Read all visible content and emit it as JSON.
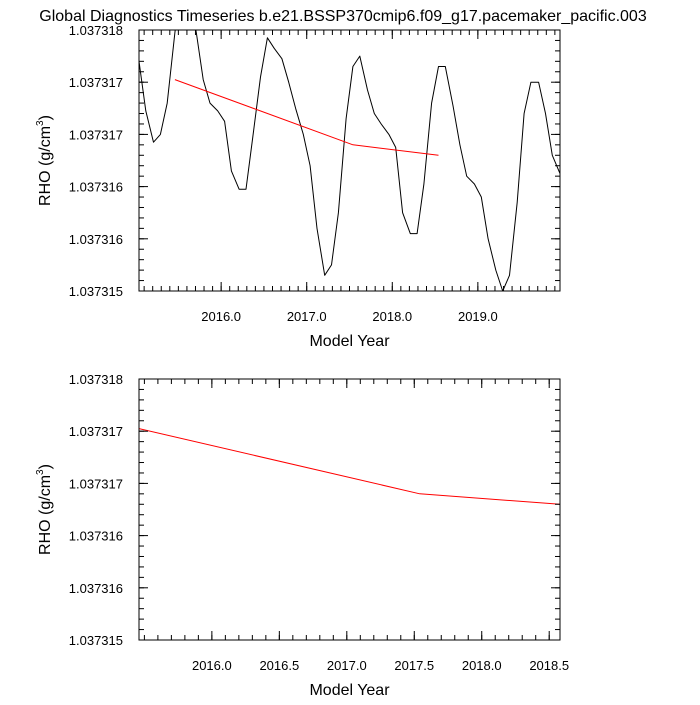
{
  "title": "Global Diagnostics Timeseries b.e21.BSSP370cmip6.f09_g17.pacemaker_pacific.003",
  "colors": {
    "raw_series": "#000000",
    "smooth_series": "#ff0000",
    "frame": "#000000",
    "background": "#ffffff"
  },
  "chart_data": [
    {
      "type": "line",
      "xlabel": "Model Year",
      "ylabel_main": "RHO (g/cm",
      "ylabel_sup": "3",
      "ylabel_close": ")",
      "xlim": [
        2015.04,
        2019.96
      ],
      "ylim": [
        0,
        5
      ],
      "yticks": [
        {
          "v": 0,
          "label": "1.037315"
        },
        {
          "v": 1,
          "label": "1.037316"
        },
        {
          "v": 2,
          "label": "1.037316"
        },
        {
          "v": 3,
          "label": "1.037317"
        },
        {
          "v": 4,
          "label": "1.037317"
        },
        {
          "v": 5,
          "label": "1.037318"
        }
      ],
      "xticks": [
        {
          "v": 2016.0,
          "label": "2016.0"
        },
        {
          "v": 2017.0,
          "label": "2017.0"
        },
        {
          "v": 2018.0,
          "label": "2018.0"
        },
        {
          "v": 2019.0,
          "label": "2019.0"
        }
      ],
      "x_minor_step": 0.1,
      "y_minor_step": 0.2,
      "series": [
        {
          "color": "#000000",
          "x": [
            2015.04,
            2015.12,
            2015.21,
            2015.29,
            2015.37,
            2015.46,
            2015.54,
            2015.62,
            2015.71,
            2015.79,
            2015.87,
            2015.96,
            2016.04,
            2016.12,
            2016.21,
            2016.29,
            2016.37,
            2016.46,
            2016.54,
            2016.62,
            2016.71,
            2016.79,
            2016.87,
            2016.96,
            2017.04,
            2017.12,
            2017.21,
            2017.29,
            2017.37,
            2017.46,
            2017.54,
            2017.62,
            2017.71,
            2017.79,
            2017.87,
            2017.96,
            2018.04,
            2018.12,
            2018.21,
            2018.29,
            2018.37,
            2018.46,
            2018.54,
            2018.62,
            2018.71,
            2018.79,
            2018.87,
            2018.96,
            2019.04,
            2019.12,
            2019.21,
            2019.29,
            2019.37,
            2019.46,
            2019.54,
            2019.62,
            2019.71,
            2019.79,
            2019.87,
            2019.96
          ],
          "y": [
            4.4,
            3.45,
            2.85,
            3.0,
            3.6,
            4.95,
            6.0,
            5.8,
            4.95,
            4.05,
            3.6,
            3.45,
            3.25,
            2.3,
            1.95,
            1.95,
            2.95,
            4.1,
            4.85,
            4.65,
            4.45,
            4.0,
            3.5,
            3.0,
            2.4,
            1.2,
            0.3,
            0.5,
            1.5,
            3.3,
            4.3,
            4.5,
            3.85,
            3.4,
            3.2,
            3.0,
            2.75,
            1.5,
            1.1,
            1.1,
            2.05,
            3.6,
            4.3,
            4.3,
            3.55,
            2.8,
            2.2,
            2.05,
            1.8,
            1.0,
            0.4,
            0.0,
            0.3,
            1.7,
            3.4,
            4.0,
            4.0,
            3.4,
            2.6,
            2.25
          ]
        },
        {
          "color": "#ff0000",
          "x": [
            2015.46,
            2017.54,
            2018.54
          ],
          "y": [
            4.05,
            2.8,
            2.6
          ]
        }
      ]
    },
    {
      "type": "line",
      "xlabel": "Model Year",
      "ylabel_main": "RHO (g/cm",
      "ylabel_sup": "3",
      "ylabel_close": ")",
      "xlim": [
        2015.46,
        2018.58
      ],
      "ylim": [
        0,
        5
      ],
      "yticks": [
        {
          "v": 0,
          "label": "1.037315"
        },
        {
          "v": 1,
          "label": "1.037316"
        },
        {
          "v": 2,
          "label": "1.037316"
        },
        {
          "v": 3,
          "label": "1.037317"
        },
        {
          "v": 4,
          "label": "1.037317"
        },
        {
          "v": 5,
          "label": "1.037318"
        }
      ],
      "xticks": [
        {
          "v": 2016.0,
          "label": "2016.0"
        },
        {
          "v": 2016.5,
          "label": "2016.5"
        },
        {
          "v": 2017.0,
          "label": "2017.0"
        },
        {
          "v": 2017.5,
          "label": "2017.5"
        },
        {
          "v": 2018.0,
          "label": "2018.0"
        },
        {
          "v": 2018.5,
          "label": "2018.5"
        }
      ],
      "x_minor_step": 0.1,
      "y_minor_step": 0.2,
      "series": [
        {
          "color": "#ff0000",
          "x": [
            2015.46,
            2017.54,
            2018.58
          ],
          "y": [
            4.05,
            2.8,
            2.6
          ]
        }
      ]
    }
  ]
}
